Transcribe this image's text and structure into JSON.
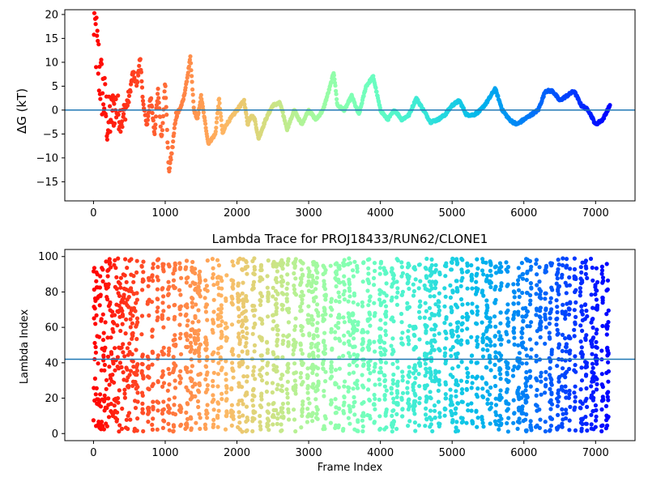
{
  "chart_data": [
    {
      "type": "scatter",
      "title": "",
      "xlabel": "",
      "ylabel": "ΔG (kT)",
      "xlim": [
        -400,
        7550
      ],
      "ylim": [
        -19,
        21
      ],
      "xticks": [
        0,
        1000,
        2000,
        3000,
        4000,
        5000,
        6000,
        7000
      ],
      "yticks": [
        -15,
        -10,
        -5,
        0,
        5,
        10,
        15,
        20
      ],
      "hline": 0,
      "hline_color": "#1f77b4",
      "colormap": "rainbow (color by frame index, red at 0 to violet at 7200)",
      "waypoints": [
        [
          0,
          20
        ],
        [
          50,
          12
        ],
        [
          100,
          6
        ],
        [
          150,
          2
        ],
        [
          200,
          -3
        ],
        [
          300,
          1
        ],
        [
          400,
          -2
        ],
        [
          500,
          3
        ],
        [
          550,
          8
        ],
        [
          600,
          5
        ],
        [
          650,
          11
        ],
        [
          700,
          0
        ],
        [
          750,
          -3
        ],
        [
          800,
          3
        ],
        [
          850,
          -5
        ],
        [
          900,
          4
        ],
        [
          950,
          -6
        ],
        [
          1000,
          6
        ],
        [
          1050,
          -13
        ],
        [
          1100,
          -8
        ],
        [
          1150,
          -1
        ],
        [
          1200,
          0
        ],
        [
          1250,
          2
        ],
        [
          1300,
          6
        ],
        [
          1350,
          11
        ],
        [
          1400,
          0
        ],
        [
          1450,
          -2
        ],
        [
          1500,
          3
        ],
        [
          1600,
          -7
        ],
        [
          1700,
          -5
        ],
        [
          1750,
          2.5
        ],
        [
          1800,
          -5
        ],
        [
          1850,
          -3
        ],
        [
          1900,
          -2
        ],
        [
          2000,
          0
        ],
        [
          2100,
          2
        ],
        [
          2150,
          -3
        ],
        [
          2200,
          -1
        ],
        [
          2250,
          -2
        ],
        [
          2300,
          -6
        ],
        [
          2400,
          -2
        ],
        [
          2500,
          1
        ],
        [
          2600,
          1.5
        ],
        [
          2700,
          -4
        ],
        [
          2800,
          0
        ],
        [
          2900,
          -3
        ],
        [
          3000,
          0
        ],
        [
          3100,
          -2
        ],
        [
          3200,
          0
        ],
        [
          3300,
          5
        ],
        [
          3350,
          8
        ],
        [
          3400,
          1
        ],
        [
          3500,
          0
        ],
        [
          3600,
          3
        ],
        [
          3700,
          -1
        ],
        [
          3800,
          5
        ],
        [
          3900,
          7
        ],
        [
          4000,
          0
        ],
        [
          4100,
          -2
        ],
        [
          4200,
          0
        ],
        [
          4300,
          -2
        ],
        [
          4400,
          -1
        ],
        [
          4500,
          2.5
        ],
        [
          4600,
          0
        ],
        [
          4700,
          -2.5
        ],
        [
          4800,
          -2
        ],
        [
          4900,
          -1
        ],
        [
          5000,
          1
        ],
        [
          5100,
          2
        ],
        [
          5200,
          -1
        ],
        [
          5300,
          -1
        ],
        [
          5400,
          0
        ],
        [
          5500,
          2
        ],
        [
          5600,
          4.5
        ],
        [
          5700,
          0
        ],
        [
          5800,
          -2
        ],
        [
          5900,
          -3
        ],
        [
          6000,
          -2
        ],
        [
          6100,
          -1
        ],
        [
          6200,
          0
        ],
        [
          6300,
          4
        ],
        [
          6400,
          4
        ],
        [
          6500,
          2
        ],
        [
          6600,
          3
        ],
        [
          6700,
          4
        ],
        [
          6800,
          1
        ],
        [
          6900,
          0
        ],
        [
          7000,
          -3
        ],
        [
          7100,
          -2
        ],
        [
          7200,
          1
        ]
      ]
    },
    {
      "type": "scatter",
      "title": "Lambda Trace for PROJ18433/RUN62/CLONE1",
      "xlabel": "Frame Index",
      "ylabel": "Lambda Index",
      "xlim": [
        -400,
        7550
      ],
      "ylim": [
        -4,
        104
      ],
      "xticks": [
        0,
        1000,
        2000,
        3000,
        4000,
        5000,
        6000,
        7000
      ],
      "yticks": [
        0,
        20,
        40,
        60,
        80,
        100
      ],
      "hline": 42,
      "hline_color": "#1f77b4",
      "colormap": "rainbow (color by frame index, red at 0 to violet at 7200)",
      "frames": 7200,
      "range": [
        1,
        99
      ]
    }
  ]
}
